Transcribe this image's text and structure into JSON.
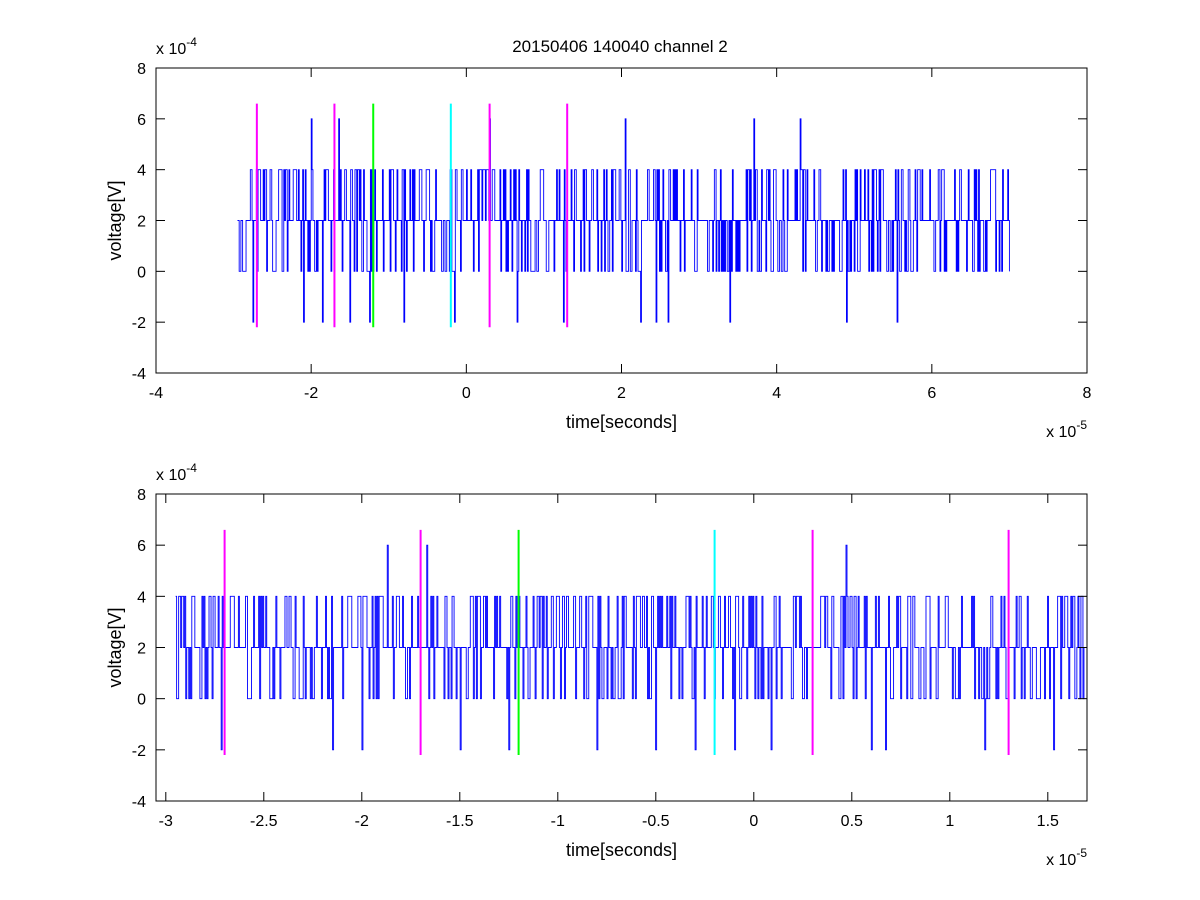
{
  "figure_title": "20150406 140040 channel 2",
  "chart_data": [
    {
      "type": "line",
      "name": "overview",
      "xlabel": "time[seconds]",
      "ylabel": "voltage[V]",
      "x_exponent_label": "x 10",
      "x_exponent": "-5",
      "y_exponent_label": "x 10",
      "y_exponent": "-4",
      "xlim": [
        -4,
        8
      ],
      "ylim": [
        -4,
        8
      ],
      "xticks": [
        -4,
        -2,
        0,
        2,
        4,
        6,
        8
      ],
      "xtick_labels": [
        "-4",
        "-2",
        "0",
        "2",
        "4",
        "6",
        "8"
      ],
      "yticks": [
        -4,
        -2,
        0,
        2,
        4,
        6,
        8
      ],
      "ytick_labels": [
        "-4",
        "-2",
        "0",
        "2",
        "4",
        "6",
        "8"
      ],
      "grid": false,
      "signal": {
        "color": "#0000ff",
        "x_start": -2.95,
        "x_end": 7.0,
        "levels": [
          -2,
          0,
          2,
          4,
          6
        ],
        "baseline": 2,
        "spikes": [
          {
            "x": -2.75,
            "y": -2
          },
          {
            "x": -2.1,
            "y": -2
          },
          {
            "x": -1.85,
            "y": -2
          },
          {
            "x": -2.0,
            "y": 6
          },
          {
            "x": -1.65,
            "y": 6
          },
          {
            "x": -1.5,
            "y": -2
          },
          {
            "x": -1.25,
            "y": -2
          },
          {
            "x": -0.8,
            "y": -2
          },
          {
            "x": -0.15,
            "y": -2
          },
          {
            "x": 0.3,
            "y": 6
          },
          {
            "x": 0.65,
            "y": -2
          },
          {
            "x": 1.25,
            "y": -2
          },
          {
            "x": 2.05,
            "y": 6
          },
          {
            "x": 2.25,
            "y": -2
          },
          {
            "x": 2.45,
            "y": -2
          },
          {
            "x": 2.6,
            "y": -2
          },
          {
            "x": 3.4,
            "y": -2
          },
          {
            "x": 3.7,
            "y": 6
          },
          {
            "x": 4.3,
            "y": 6
          },
          {
            "x": 4.9,
            "y": -2
          },
          {
            "x": 5.55,
            "y": -2
          }
        ]
      },
      "markers": [
        {
          "x": -2.7,
          "color": "#ff00ff",
          "y_from": -2.2,
          "y_to": 6.6
        },
        {
          "x": -1.7,
          "color": "#ff00ff",
          "y_from": -2.2,
          "y_to": 6.6
        },
        {
          "x": -1.2,
          "color": "#00ff00",
          "y_from": -2.2,
          "y_to": 6.6
        },
        {
          "x": -0.2,
          "color": "#00ffff",
          "y_from": -2.2,
          "y_to": 6.6
        },
        {
          "x": 0.3,
          "color": "#ff00ff",
          "y_from": -2.2,
          "y_to": 6.6
        },
        {
          "x": 1.3,
          "color": "#ff00ff",
          "y_from": -2.2,
          "y_to": 6.6
        }
      ]
    },
    {
      "type": "line",
      "name": "zoom",
      "xlabel": "time[seconds]",
      "ylabel": "voltage[V]",
      "x_exponent_label": "x 10",
      "x_exponent": "-5",
      "y_exponent_label": "x 10",
      "y_exponent": "-4",
      "xlim": [
        -3.05,
        1.7
      ],
      "ylim": [
        -4,
        8
      ],
      "xticks": [
        -3,
        -2.5,
        -2,
        -1.5,
        -1,
        -0.5,
        0,
        0.5,
        1,
        1.5
      ],
      "xtick_labels": [
        "-3",
        "-2.5",
        "-2",
        "-1.5",
        "-1",
        "-0.5",
        "0",
        "0.5",
        "1",
        "1.5"
      ],
      "yticks": [
        -4,
        -2,
        0,
        2,
        4,
        6,
        8
      ],
      "ytick_labels": [
        "-4",
        "-2",
        "0",
        "2",
        "4",
        "6",
        "8"
      ],
      "grid": false,
      "signal": {
        "color": "#0000ff",
        "x_start": -2.95,
        "x_end": 1.7,
        "levels": [
          -2,
          0,
          2,
          4,
          6
        ],
        "baseline": 2,
        "spikes": [
          {
            "x": -2.72,
            "y": -2
          },
          {
            "x": -2.15,
            "y": -2
          },
          {
            "x": -2.0,
            "y": -2
          },
          {
            "x": -1.87,
            "y": 6
          },
          {
            "x": -1.67,
            "y": 6
          },
          {
            "x": -1.5,
            "y": -2
          },
          {
            "x": -1.25,
            "y": -2
          },
          {
            "x": -0.8,
            "y": -2
          },
          {
            "x": -0.5,
            "y": -2
          },
          {
            "x": -0.3,
            "y": -2
          },
          {
            "x": -0.1,
            "y": -2
          },
          {
            "x": 0.09,
            "y": -2
          },
          {
            "x": 0.47,
            "y": 6
          },
          {
            "x": 0.6,
            "y": -2
          },
          {
            "x": 0.67,
            "y": -2
          },
          {
            "x": 1.18,
            "y": -2
          },
          {
            "x": 1.53,
            "y": -2
          }
        ]
      },
      "markers": [
        {
          "x": -2.7,
          "color": "#ff00ff",
          "y_from": -2.2,
          "y_to": 6.6
        },
        {
          "x": -1.7,
          "color": "#ff00ff",
          "y_from": -2.2,
          "y_to": 6.6
        },
        {
          "x": -1.2,
          "color": "#00ff00",
          "y_from": -2.2,
          "y_to": 6.6
        },
        {
          "x": -0.2,
          "color": "#00ffff",
          "y_from": -2.2,
          "y_to": 6.6
        },
        {
          "x": 0.3,
          "color": "#ff00ff",
          "y_from": -2.2,
          "y_to": 6.6
        },
        {
          "x": 1.3,
          "color": "#ff00ff",
          "y_from": -2.2,
          "y_to": 6.6
        }
      ]
    }
  ]
}
